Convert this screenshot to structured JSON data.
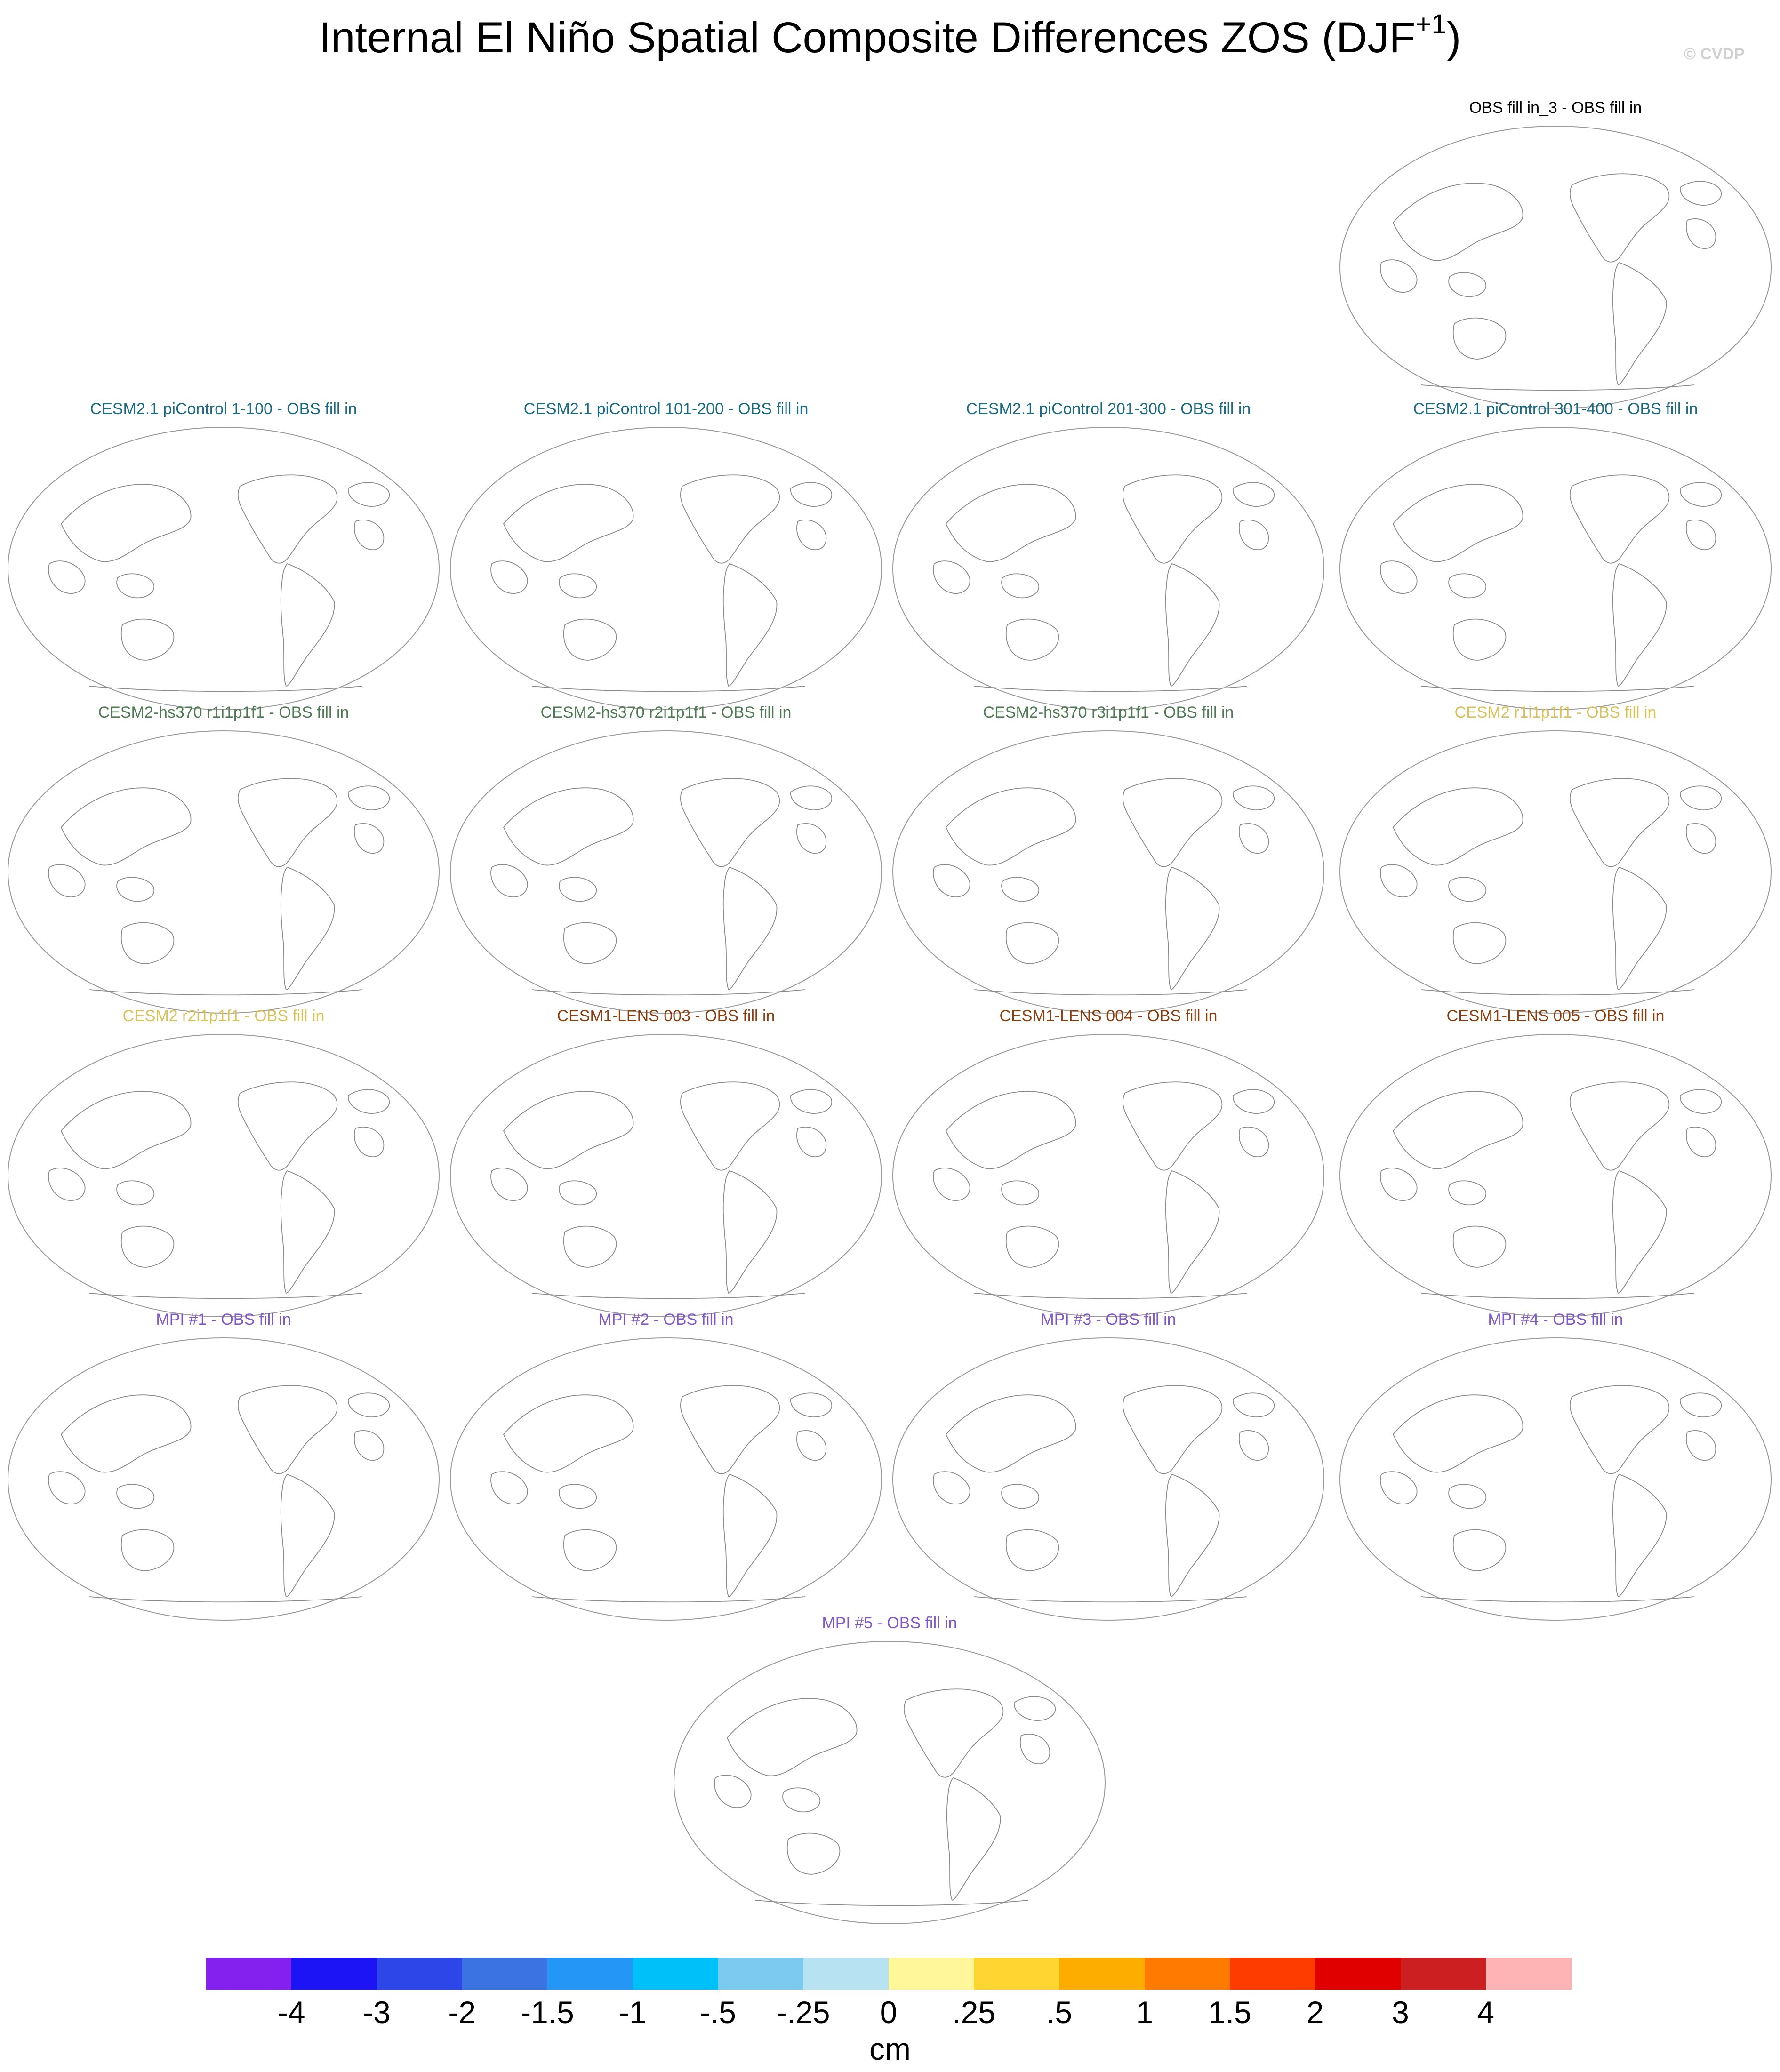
{
  "figure": {
    "title_main": "Internal El Niño Spatial Composite Differences ZOS (DJF",
    "title_sup": "+1",
    "title_close": ")",
    "credit": "© CVDP"
  },
  "panels": [
    {
      "title": "OBS fill in_3 - OBS fill in",
      "color": "#000000"
    },
    {
      "title": "CESM2.1 piControl 1-100 - OBS fill in",
      "color": "#1a6a84"
    },
    {
      "title": "CESM2.1 piControl 101-200 - OBS fill in",
      "color": "#1a6a84"
    },
    {
      "title": "CESM2.1 piControl 201-300 - OBS fill in",
      "color": "#1a6a84"
    },
    {
      "title": "CESM2.1 piControl 301-400 - OBS fill in",
      "color": "#1a6a84"
    },
    {
      "title": "CESM2-hs370 r1i1p1f1 - OBS fill in",
      "color": "#4f7a53"
    },
    {
      "title": "CESM2-hs370 r2i1p1f1 - OBS fill in",
      "color": "#4f7a53"
    },
    {
      "title": "CESM2-hs370 r3i1p1f1 - OBS fill in",
      "color": "#4f7a53"
    },
    {
      "title": "CESM2 r1i1p1f1 - OBS fill in",
      "color": "#d9c15a"
    },
    {
      "title": "CESM2 r2i1p1f1 - OBS fill in",
      "color": "#d9c15a"
    },
    {
      "title": "CESM1-LENS 003 - OBS fill in",
      "color": "#8a3e10"
    },
    {
      "title": "CESM1-LENS 004 - OBS fill in",
      "color": "#8a3e10"
    },
    {
      "title": "CESM1-LENS 005 - OBS fill in",
      "color": "#8a3e10"
    },
    {
      "title": "MPI #1 - OBS fill in",
      "color": "#7f57c8"
    },
    {
      "title": "MPI #2 - OBS fill in",
      "color": "#7f57c8"
    },
    {
      "title": "MPI #3 - OBS fill in",
      "color": "#7f57c8"
    },
    {
      "title": "MPI #4 - OBS fill in",
      "color": "#7f57c8"
    },
    {
      "title": "MPI #5 - OBS fill in",
      "color": "#7f57c8"
    }
  ],
  "colorbar": {
    "colors": [
      "#8521ee",
      "#1d14f5",
      "#2d46e8",
      "#3b73e2",
      "#2496f5",
      "#00c0fa",
      "#7ccaef",
      "#b6e2f2",
      "#fff79a",
      "#ffd631",
      "#fdac00",
      "#fe7a00",
      "#fe3c00",
      "#e10000",
      "#cc1f21",
      "#feb4b4"
    ],
    "labels": [
      "-4",
      "-3",
      "-2",
      "-1.5",
      "-1",
      "-.5",
      "-.25",
      "0",
      ".25",
      ".5",
      "1",
      "1.5",
      "2",
      "3",
      "4"
    ],
    "units": "cm"
  }
}
